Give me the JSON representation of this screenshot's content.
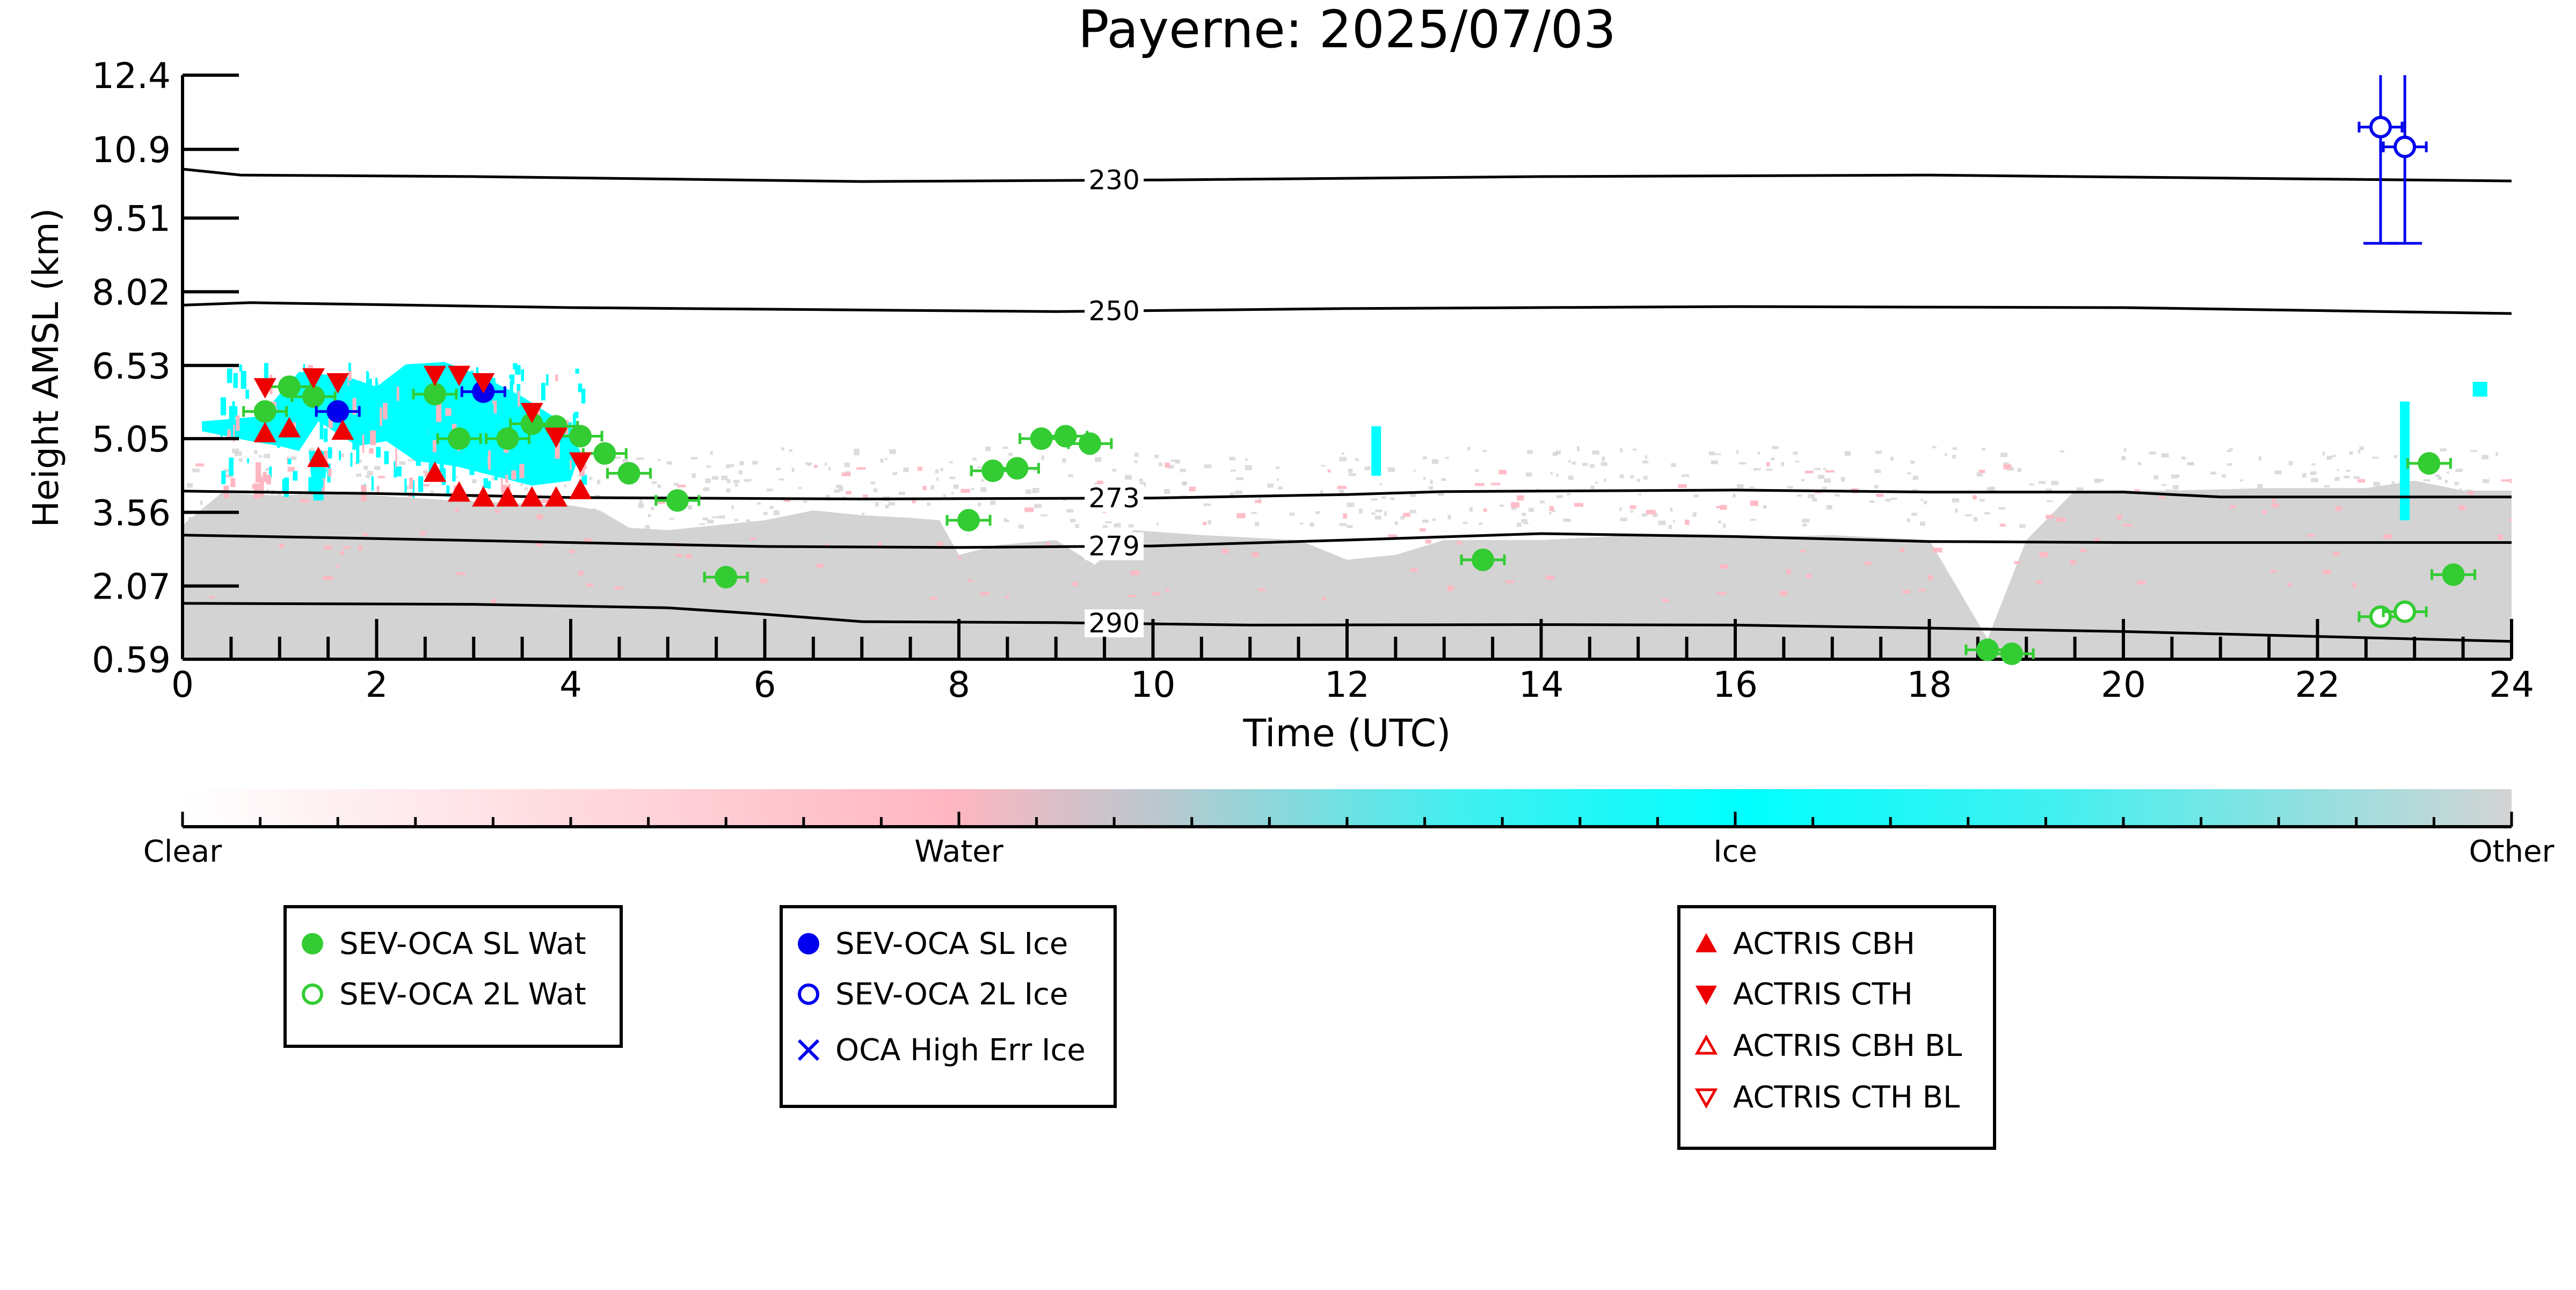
{
  "chart_data": {
    "type": "scatter",
    "title": "Payerne: 2025/07/03",
    "xlabel": "Time (UTC)",
    "ylabel": "Height AMSL (km)",
    "xlim": [
      0,
      24
    ],
    "xticks": [
      "0",
      "2",
      "4",
      "6",
      "8",
      "10",
      "12",
      "14",
      "16",
      "18",
      "20",
      "22",
      "24"
    ],
    "ylim": [
      0.59,
      12.4
    ],
    "yticks": [
      "0.59",
      "2.07",
      "3.56",
      "5.05",
      "6.53",
      "8.02",
      "9.51",
      "10.9",
      "12.4"
    ],
    "background": "cloud phase classification (Clear / Water / Ice / Other)",
    "isotherms": [
      {
        "label": "230",
        "points": [
          [
            0,
            10.5
          ],
          [
            0.6,
            10.38
          ],
          [
            3,
            10.35
          ],
          [
            7,
            10.25
          ],
          [
            10,
            10.28
          ],
          [
            14,
            10.35
          ],
          [
            18,
            10.38
          ],
          [
            22,
            10.3
          ],
          [
            24,
            10.26
          ]
        ],
        "label_x": 9.6
      },
      {
        "label": "250",
        "points": [
          [
            0,
            7.75
          ],
          [
            0.7,
            7.8
          ],
          [
            4,
            7.7
          ],
          [
            9,
            7.62
          ],
          [
            12,
            7.68
          ],
          [
            16,
            7.72
          ],
          [
            20,
            7.7
          ],
          [
            24,
            7.58
          ]
        ],
        "label_x": 9.6
      },
      {
        "label": "273",
        "points": [
          [
            0,
            3.99
          ],
          [
            2,
            3.94
          ],
          [
            4,
            3.86
          ],
          [
            7,
            3.83
          ],
          [
            10,
            3.85
          ],
          [
            12,
            3.92
          ],
          [
            13,
            3.98
          ],
          [
            16,
            4.01
          ],
          [
            18,
            3.97
          ],
          [
            20,
            3.97
          ],
          [
            21,
            3.87
          ],
          [
            24,
            3.87
          ]
        ],
        "label_x": 9.6
      },
      {
        "label": "279",
        "points": [
          [
            0,
            3.1
          ],
          [
            2,
            3.03
          ],
          [
            4,
            2.95
          ],
          [
            6,
            2.87
          ],
          [
            8,
            2.85
          ],
          [
            10,
            2.88
          ],
          [
            12,
            3.0
          ],
          [
            14,
            3.13
          ],
          [
            16,
            3.07
          ],
          [
            18,
            2.97
          ],
          [
            20,
            2.95
          ],
          [
            24,
            2.95
          ]
        ],
        "label_x": 9.6
      },
      {
        "label": "290",
        "points": [
          [
            0,
            1.72
          ],
          [
            3,
            1.7
          ],
          [
            5,
            1.63
          ],
          [
            6,
            1.5
          ],
          [
            7,
            1.35
          ],
          [
            9,
            1.33
          ],
          [
            11,
            1.28
          ],
          [
            14,
            1.29
          ],
          [
            16,
            1.28
          ],
          [
            18,
            1.22
          ],
          [
            20,
            1.15
          ],
          [
            22,
            1.05
          ],
          [
            24,
            0.95
          ]
        ],
        "label_x": 9.6
      }
    ],
    "series": [
      {
        "name": "SEV-OCA SL Wat",
        "marker": "circle-filled",
        "color": "#33cc33",
        "points": [
          [
            0.85,
            5.6
          ],
          [
            1.1,
            6.1
          ],
          [
            1.35,
            5.9
          ],
          [
            2.6,
            5.95
          ],
          [
            2.85,
            5.05
          ],
          [
            3.35,
            5.05
          ],
          [
            3.6,
            5.35
          ],
          [
            3.85,
            5.3
          ],
          [
            4.1,
            5.1
          ],
          [
            4.35,
            4.75
          ],
          [
            4.6,
            4.35
          ],
          [
            5.1,
            3.8
          ],
          [
            5.6,
            2.25
          ],
          [
            8.1,
            3.4
          ],
          [
            8.35,
            4.4
          ],
          [
            8.6,
            4.45
          ],
          [
            8.85,
            5.05
          ],
          [
            9.1,
            5.1
          ],
          [
            9.35,
            4.95
          ],
          [
            13.4,
            2.6
          ],
          [
            18.6,
            0.78
          ],
          [
            18.85,
            0.7
          ],
          [
            23.15,
            4.55
          ],
          [
            23.4,
            2.3
          ]
        ]
      },
      {
        "name": "SEV-OCA 2L Wat",
        "marker": "circle-open",
        "color": "#33cc33",
        "points": [
          [
            22.65,
            1.45
          ],
          [
            22.9,
            1.55
          ]
        ]
      },
      {
        "name": "SEV-OCA SL Ice",
        "marker": "circle-filled",
        "color": "#0000ee",
        "points": [
          [
            1.6,
            5.6
          ],
          [
            3.1,
            6.0
          ]
        ]
      },
      {
        "name": "SEV-OCA 2L Ice",
        "marker": "circle-open",
        "color": "#0000ee",
        "points": [
          [
            22.65,
            11.35
          ],
          [
            22.9,
            10.95
          ]
        ]
      },
      {
        "name": "OCA High Err Ice",
        "marker": "x",
        "color": "#0000ee",
        "points": []
      },
      {
        "name": "ACTRIS CBH",
        "marker": "triangle-up-filled",
        "color": "#ee0000",
        "points": [
          [
            0.85,
            5.15
          ],
          [
            1.1,
            5.25
          ],
          [
            1.4,
            4.65
          ],
          [
            1.65,
            5.2
          ],
          [
            2.6,
            4.35
          ],
          [
            2.85,
            3.95
          ],
          [
            3.1,
            3.85
          ],
          [
            3.35,
            3.85
          ],
          [
            3.6,
            3.85
          ],
          [
            3.85,
            3.85
          ],
          [
            4.1,
            4.0
          ]
        ]
      },
      {
        "name": "ACTRIS CTH",
        "marker": "triangle-down-filled",
        "color": "#ee0000",
        "points": [
          [
            0.85,
            6.1
          ],
          [
            1.35,
            6.3
          ],
          [
            1.6,
            6.2
          ],
          [
            2.6,
            6.35
          ],
          [
            2.85,
            6.35
          ],
          [
            3.1,
            6.2
          ],
          [
            3.6,
            5.6
          ],
          [
            3.85,
            5.1
          ],
          [
            4.1,
            4.6
          ]
        ]
      },
      {
        "name": "ACTRIS CBH BL",
        "marker": "triangle-up-open",
        "color": "#ee0000",
        "points": []
      },
      {
        "name": "ACTRIS CTH BL",
        "marker": "triangle-down-open",
        "color": "#ee0000",
        "points": []
      }
    ],
    "error_bars": [
      {
        "x": 22.65,
        "y": 11.35,
        "y_low": 9.0,
        "y_high": 12.4,
        "color": "#0000ee"
      },
      {
        "x": 22.9,
        "y": 10.95,
        "y_low": 9.0,
        "y_high": 12.4,
        "color": "#0000ee"
      }
    ],
    "colorbar": {
      "labels": [
        "Clear",
        "Water",
        "Ice",
        "Other"
      ],
      "colors": [
        "#ffffff",
        "#ffb6c1",
        "#00ffff",
        "#d3d3d3"
      ]
    },
    "legends": [
      {
        "entries": [
          "SEV-OCA SL Wat",
          "SEV-OCA 2L Wat"
        ]
      },
      {
        "entries": [
          "SEV-OCA SL Ice",
          "SEV-OCA 2L Ice",
          "OCA High Err Ice"
        ]
      },
      {
        "entries": [
          "ACTRIS CBH",
          "ACTRIS CTH",
          "ACTRIS CBH BL",
          "ACTRIS CTH BL"
        ]
      }
    ]
  }
}
